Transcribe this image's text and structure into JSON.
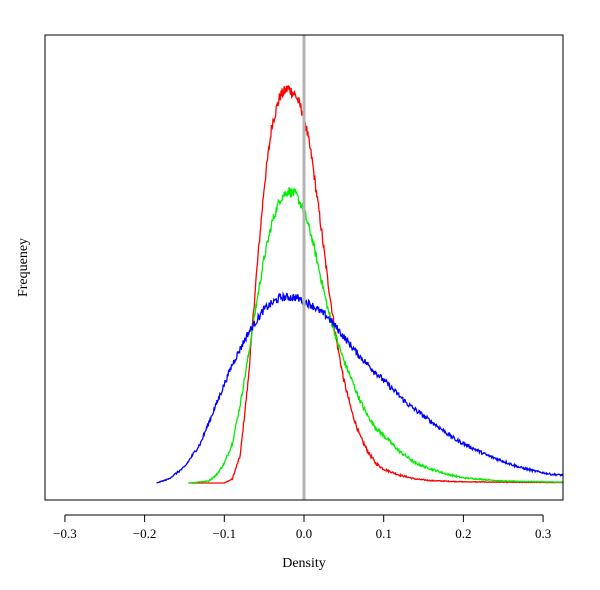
{
  "chart_data": {
    "type": "line",
    "title": "",
    "xlabel": "Density",
    "ylabel": "Frequeney",
    "xlim": [
      -0.325,
      0.325
    ],
    "ylim": [
      0,
      1.03
    ],
    "x_ticks": [
      -0.3,
      -0.2,
      -0.1,
      0.0,
      0.1,
      0.2,
      0.3
    ],
    "x_tick_labels": [
      "−0.3",
      "−0.2",
      "−0.1",
      "0.0",
      "0.1",
      "0.2",
      "0.3"
    ],
    "y_tick_labels_shown": false,
    "grid": false,
    "legend": "none",
    "reference_line": {
      "x": 0.0,
      "color": "#b3b3b3"
    },
    "series": [
      {
        "color": "#ff0000",
        "x": [
          -0.145,
          -0.1,
          -0.09,
          -0.08,
          -0.07,
          -0.06,
          -0.05,
          -0.04,
          -0.03,
          -0.02,
          -0.01,
          0.0,
          0.01,
          0.02,
          0.03,
          0.04,
          0.05,
          0.06,
          0.07,
          0.08,
          0.09,
          0.1,
          0.12,
          0.14,
          0.16,
          0.2,
          0.25,
          0.325
        ],
        "y": [
          0.0,
          0.0,
          0.01,
          0.07,
          0.26,
          0.52,
          0.75,
          0.91,
          0.98,
          1.0,
          0.98,
          0.93,
          0.82,
          0.67,
          0.51,
          0.37,
          0.26,
          0.18,
          0.12,
          0.08,
          0.05,
          0.035,
          0.02,
          0.01,
          0.006,
          0.003,
          0.002,
          0.001
        ]
      },
      {
        "color": "#00ee00",
        "x": [
          -0.145,
          -0.12,
          -0.11,
          -0.1,
          -0.09,
          -0.08,
          -0.07,
          -0.06,
          -0.05,
          -0.04,
          -0.03,
          -0.02,
          -0.01,
          0.0,
          0.01,
          0.02,
          0.03,
          0.04,
          0.05,
          0.06,
          0.07,
          0.08,
          0.09,
          0.1,
          0.12,
          0.14,
          0.16,
          0.18,
          0.2,
          0.25,
          0.325
        ],
        "y": [
          0.0,
          0.005,
          0.02,
          0.05,
          0.1,
          0.2,
          0.32,
          0.45,
          0.57,
          0.66,
          0.72,
          0.74,
          0.73,
          0.69,
          0.62,
          0.53,
          0.44,
          0.37,
          0.31,
          0.26,
          0.21,
          0.17,
          0.14,
          0.12,
          0.08,
          0.05,
          0.035,
          0.022,
          0.013,
          0.005,
          0.002
        ]
      },
      {
        "color": "#0000ff",
        "x": [
          -0.185,
          -0.17,
          -0.15,
          -0.13,
          -0.11,
          -0.09,
          -0.07,
          -0.05,
          -0.03,
          -0.01,
          0.0,
          0.01,
          0.03,
          0.05,
          0.07,
          0.09,
          0.11,
          0.13,
          0.15,
          0.17,
          0.19,
          0.21,
          0.23,
          0.25,
          0.27,
          0.29,
          0.31,
          0.325
        ],
        "y": [
          0.0,
          0.01,
          0.04,
          0.1,
          0.2,
          0.3,
          0.38,
          0.44,
          0.47,
          0.47,
          0.46,
          0.45,
          0.42,
          0.37,
          0.32,
          0.28,
          0.24,
          0.2,
          0.17,
          0.14,
          0.11,
          0.09,
          0.07,
          0.055,
          0.04,
          0.03,
          0.022,
          0.02
        ]
      }
    ]
  }
}
